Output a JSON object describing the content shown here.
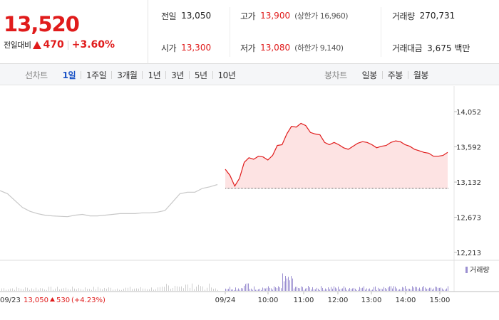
{
  "quote": {
    "price": "13,520",
    "change_label": "전일대비",
    "change_value": "470",
    "change_rate": "+3.60%"
  },
  "stats": {
    "prev_close_label": "전일",
    "prev_close": "13,050",
    "open_label": "시가",
    "open": "13,300",
    "high_label": "고가",
    "high": "13,900",
    "upper_limit_label": "상한가",
    "upper_limit": "16,960",
    "low_label": "저가",
    "low": "13,080",
    "lower_limit_label": "하한가",
    "lower_limit": "9,140",
    "volume_label": "거래량",
    "volume": "270,731",
    "amount_label": "거래대금",
    "amount": "3,675 백만"
  },
  "tabs": {
    "line_label": "선차트",
    "line_periods": [
      "1일",
      "1주일",
      "3개월",
      "1년",
      "3년",
      "5년",
      "10년"
    ],
    "active_period": "1일",
    "candle_label": "봉차트",
    "candle_periods": [
      "일봉",
      "주봉",
      "월봉"
    ]
  },
  "colors": {
    "up": "#e01b1b",
    "down": "#1b53c6",
    "active_tab": "#1b53c6",
    "prev_day_line": "#c8c8c8",
    "fill": "#fde3e3",
    "volume_today": "#9b8fd1",
    "volume_prev": "#cfcfcf"
  },
  "chart_data": {
    "type": "line",
    "y_ticks": [
      "14,052",
      "13,592",
      "13,132",
      "12,673",
      "12,213"
    ],
    "ylim": [
      12213,
      14052
    ],
    "x_ticks": [
      "09/24",
      "10:00",
      "11:00",
      "12:00",
      "13:00",
      "14:00",
      "15:00"
    ],
    "baseline": 13050,
    "prev_day_series": [
      13020,
      12980,
      12890,
      12800,
      12750,
      12720,
      12700,
      12690,
      12685,
      12680,
      12700,
      12710,
      12690,
      12690,
      12700,
      12710,
      12720,
      12720,
      12720,
      12730,
      12730,
      12740,
      12760,
      12870,
      12980,
      13000,
      13000,
      13050,
      13070,
      13100
    ],
    "today_series": [
      13300,
      13220,
      13080,
      13180,
      13390,
      13450,
      13430,
      13470,
      13460,
      13420,
      13480,
      13610,
      13620,
      13760,
      13860,
      13850,
      13900,
      13870,
      13780,
      13760,
      13750,
      13650,
      13620,
      13650,
      13620,
      13580,
      13560,
      13600,
      13640,
      13660,
      13650,
      13620,
      13580,
      13600,
      13610,
      13650,
      13670,
      13660,
      13620,
      13600,
      13560,
      13540,
      13520,
      13510,
      13470,
      13470,
      13480,
      13520
    ],
    "volume_legend": "거래량",
    "legend_text": {
      "date": "09/23",
      "prev_close": "13,050",
      "change": "530",
      "rate": "(+4.23%)"
    }
  }
}
